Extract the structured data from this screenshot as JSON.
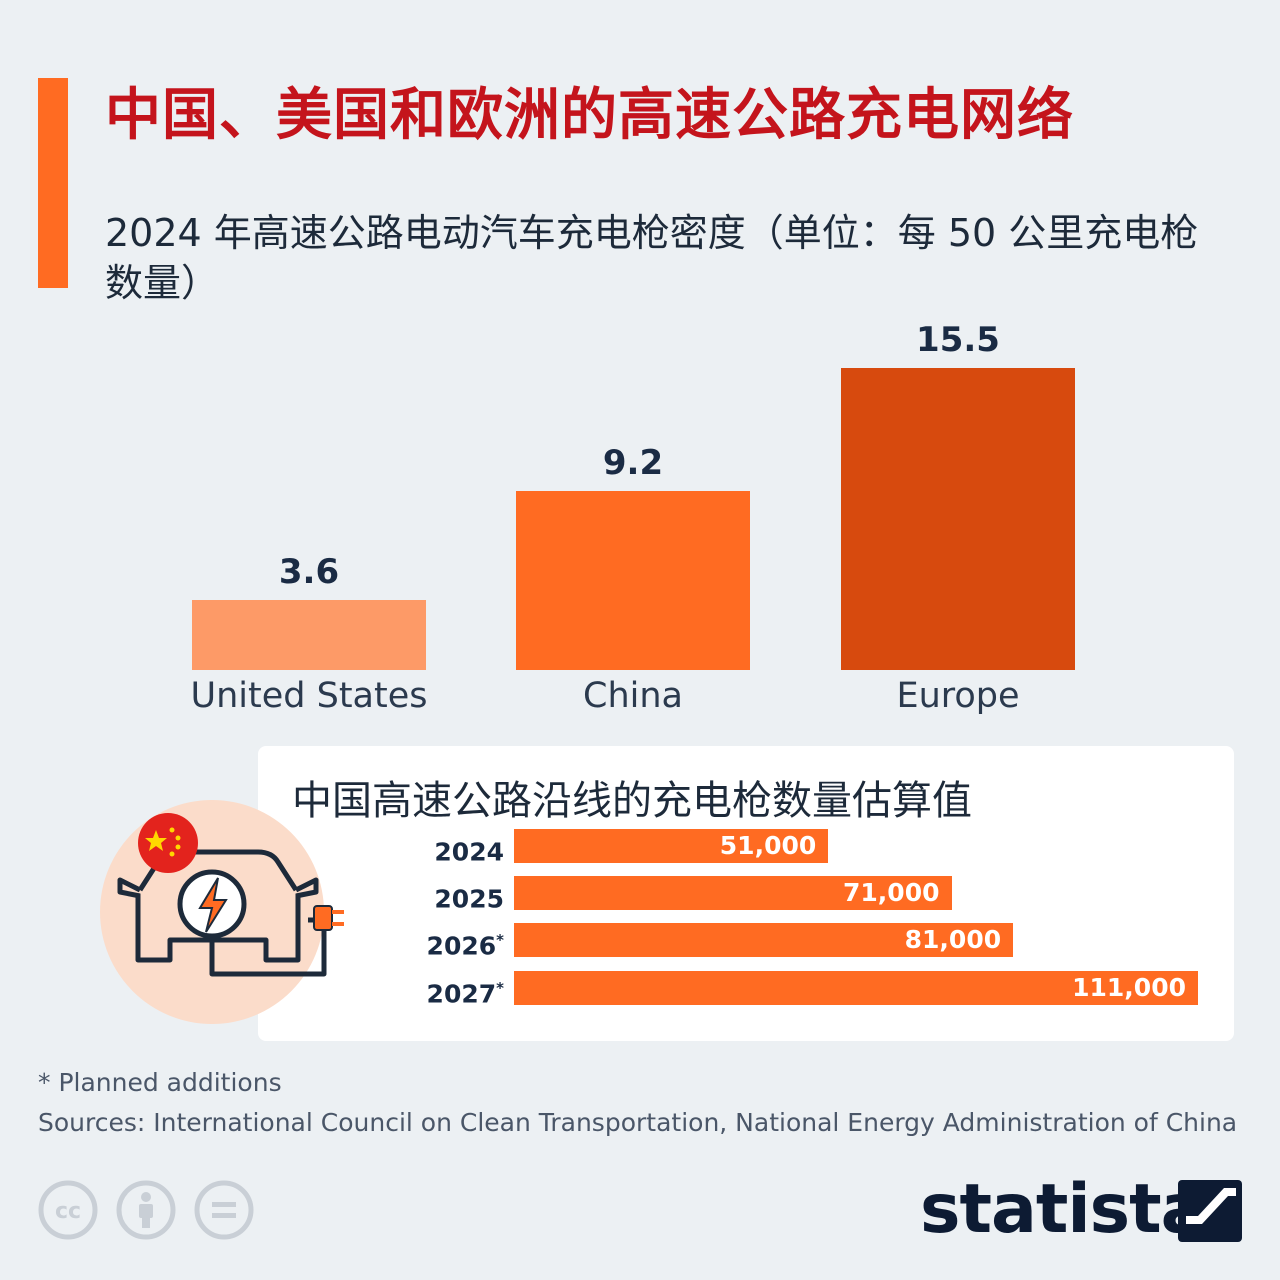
{
  "title": "中国、美国和欧洲的高速公路充电网络",
  "subtitle": "2024 年高速公路电动汽车充电枪密度（单位：每 50 公里充电枪数量）",
  "colors": {
    "accent": "#ff6b22",
    "title_red": "#c4141c",
    "bar_us": "#fd9a67",
    "bar_china": "#ff6b22",
    "bar_europe": "#d74a0e",
    "navy": "#1a2b44"
  },
  "chart_data": [
    {
      "type": "bar",
      "title": "2024 年高速公路电动汽车充电枪密度（单位：每 50 公里充电枪数量）",
      "categories": [
        "United States",
        "China",
        "Europe"
      ],
      "values": [
        3.6,
        9.2,
        15.5
      ],
      "value_labels": [
        "3.6",
        "9.2",
        "15.5"
      ],
      "ylim": [
        0,
        15.5
      ],
      "grid": false,
      "xlabel": "",
      "ylabel": ""
    },
    {
      "type": "bar",
      "orientation": "horizontal",
      "title": "中国高速公路沿线的充电枪数量估算值",
      "categories": [
        "2024",
        "2025",
        "2026",
        "2027"
      ],
      "category_marks": [
        "",
        "",
        "*",
        "*"
      ],
      "values": [
        51000,
        71000,
        81000,
        111000
      ],
      "value_labels": [
        "51,000",
        "71,000",
        "81,000",
        "111,000"
      ],
      "xlim": [
        0,
        111000
      ],
      "grid": false
    }
  ],
  "icons": {
    "ev_charging": "ev-charging-car-icon",
    "flag": "china-flag-icon",
    "license": [
      "cc-icon",
      "attribution-icon",
      "no-derivatives-icon"
    ],
    "brand": "statista-logo-icon"
  },
  "footer": {
    "note": "* Planned additions",
    "sources": "Sources: International Council on Clean Transportation, National Energy Administration of China",
    "brand": "statista"
  }
}
